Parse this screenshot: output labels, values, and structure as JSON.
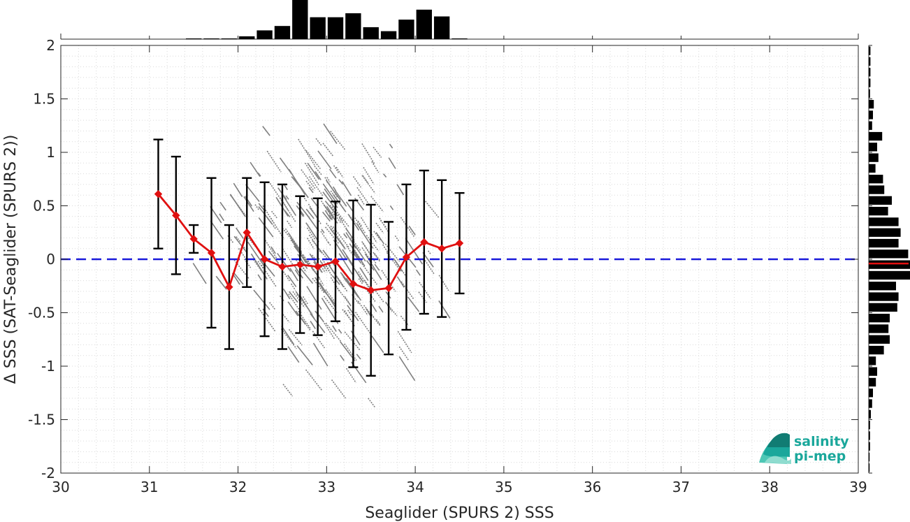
{
  "chart_data": {
    "type": "scatter",
    "xlabel": "Seaglider (SPURS 2) SSS",
    "ylabel": "Δ SSS (SAT-Seaglider (SPURS 2))",
    "xlim": [
      30,
      39
    ],
    "ylim": [
      -2,
      2
    ],
    "x_ticks": [
      30,
      31,
      32,
      33,
      34,
      35,
      36,
      37,
      38,
      39
    ],
    "y_ticks": [
      2,
      1.5,
      1,
      0.5,
      0,
      -0.5,
      -1,
      -1.5,
      -2
    ],
    "x_tick_labels": [
      "30",
      "31",
      "32",
      "33",
      "34",
      "35",
      "36",
      "37",
      "38",
      "39"
    ],
    "y_tick_labels": [
      "2",
      "1.5",
      "1",
      "0.5",
      "0",
      "-0.5",
      "-1",
      "-1.5",
      "-2"
    ],
    "grid": true,
    "zero_line": {
      "y": 0,
      "color": "#1a1adb",
      "style": "dashed"
    },
    "binned_series": {
      "color": "#e01010",
      "marker": "diamond",
      "x": [
        31.1,
        31.3,
        31.5,
        31.7,
        31.9,
        32.1,
        32.3,
        32.5,
        32.7,
        32.9,
        33.1,
        33.3,
        33.5,
        33.7,
        33.9,
        34.1,
        34.3,
        34.5
      ],
      "mean": [
        0.61,
        0.41,
        0.19,
        0.06,
        -0.26,
        0.25,
        0.0,
        -0.07,
        -0.05,
        -0.07,
        -0.02,
        -0.23,
        -0.29,
        -0.27,
        0.02,
        0.16,
        0.1,
        0.15
      ],
      "std": [
        0.51,
        0.55,
        0.13,
        0.7,
        0.58,
        0.51,
        0.72,
        0.77,
        0.64,
        0.64,
        0.56,
        0.78,
        0.8,
        0.62,
        0.68,
        0.67,
        0.64,
        0.47
      ]
    },
    "scatter_cloud": {
      "color": "#7f7f7f",
      "x_range": [
        31.1,
        34.5
      ],
      "y_range": [
        -2,
        2
      ],
      "pattern": "diagonal streaks, negative slope"
    },
    "top_histogram": {
      "bin_centers": [
        31.5,
        31.7,
        31.9,
        32.1,
        32.3,
        32.5,
        32.7,
        32.9,
        33.1,
        33.3,
        33.5,
        33.7,
        33.9,
        34.1,
        34.3,
        34.5
      ],
      "relative_counts": [
        0.01,
        0.005,
        0.005,
        0.07,
        0.22,
        0.33,
        1.0,
        0.55,
        0.55,
        0.65,
        0.3,
        0.2,
        0.49,
        0.74,
        0.57,
        0.01
      ]
    },
    "right_histogram": {
      "bin_width": 0.1,
      "bin_centers": [
        1.95,
        1.85,
        1.75,
        1.65,
        1.55,
        1.45,
        1.35,
        1.25,
        1.15,
        1.05,
        0.95,
        0.85,
        0.75,
        0.65,
        0.55,
        0.45,
        0.35,
        0.25,
        0.15,
        0.05,
        -0.05,
        -0.15,
        -0.25,
        -0.35,
        -0.45,
        -0.55,
        -0.65,
        -0.75,
        -0.85,
        -0.95,
        -1.05,
        -1.15,
        -1.25,
        -1.35,
        -1.45,
        -1.55,
        -1.65,
        -1.75,
        -1.85,
        -1.95
      ],
      "relative_counts": [
        0.04,
        0.04,
        0.04,
        0.04,
        0.03,
        0.12,
        0.1,
        0.08,
        0.32,
        0.2,
        0.23,
        0.16,
        0.34,
        0.37,
        0.55,
        0.46,
        0.71,
        0.76,
        0.71,
        0.94,
        0.99,
        1.0,
        0.65,
        0.71,
        0.68,
        0.5,
        0.47,
        0.5,
        0.36,
        0.17,
        0.2,
        0.17,
        0.1,
        0.08,
        0.05,
        0.03,
        0.03,
        0.03,
        0.02,
        0.02
      ],
      "mean_marker": {
        "y": -0.04,
        "color": "#e01010"
      }
    }
  },
  "logo": {
    "line1": "salinity",
    "line2": "pi-mep",
    "color": "#1aa79b"
  }
}
